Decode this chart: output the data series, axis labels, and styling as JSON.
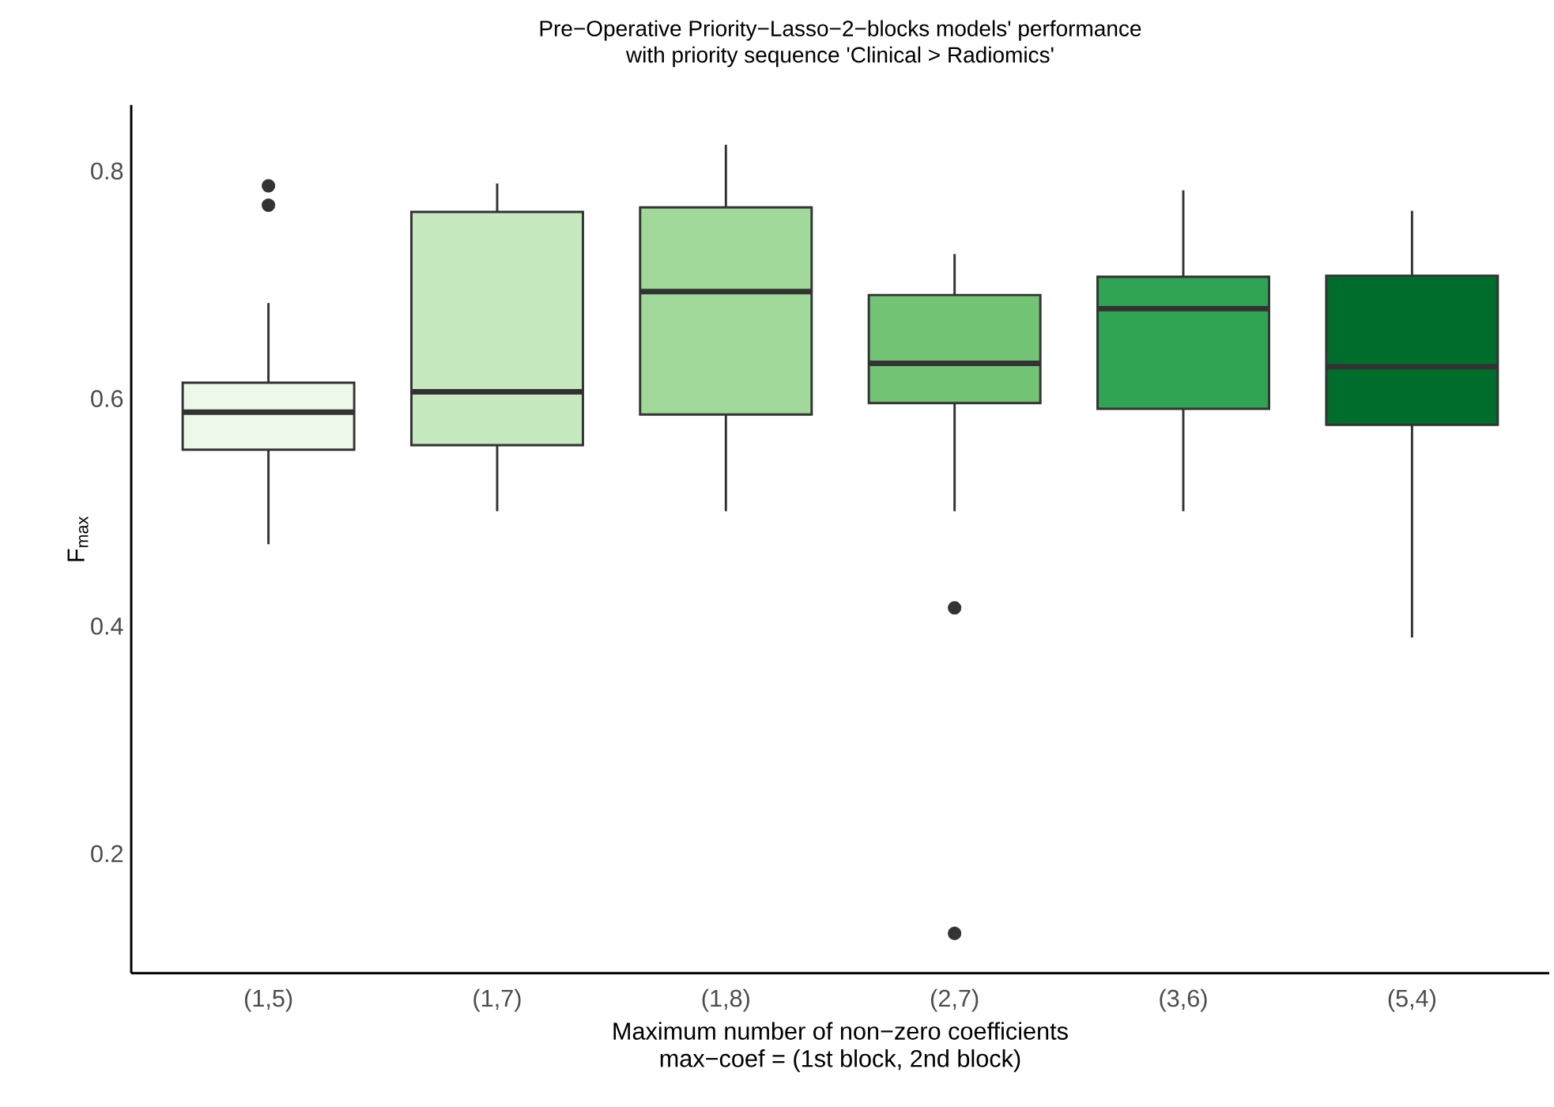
{
  "chart_data": {
    "type": "box",
    "title": "Pre−Operative Priority−Lasso−2−blocks models' performance",
    "subtitle": "with priority sequence 'Clinical > Radiomics'",
    "xlabel": "Maximum number of non−zero coefficients",
    "annotations": [
      "max−coef = (1st block, 2nd block)"
    ],
    "ylabel": "F$_{max}$",
    "categories": [
      "(1,5)",
      "(1,7)",
      "(1,8)",
      "(2,7)",
      "(3,6)",
      "(5,4)"
    ],
    "colors": [
      "#edf8e9",
      "#c7e9c0",
      "#a1d99b",
      "#74c476",
      "#31a354",
      "#006d2c"
    ],
    "boxes": [
      {
        "low": 0.472,
        "q1": 0.555,
        "median": 0.588,
        "q3": 0.614,
        "high": 0.684,
        "outliers": [
          0.787,
          0.77
        ]
      },
      {
        "low": 0.501,
        "q1": 0.559,
        "median": 0.606,
        "q3": 0.764,
        "high": 0.789
      },
      {
        "low": 0.501,
        "q1": 0.586,
        "median": 0.694,
        "q3": 0.768,
        "high": 0.823
      },
      {
        "low": 0.501,
        "q1": 0.596,
        "median": 0.631,
        "q3": 0.691,
        "high": 0.727,
        "outliers": [
          0.416,
          0.13
        ]
      },
      {
        "low": 0.501,
        "q1": 0.591,
        "median": 0.679,
        "q3": 0.707,
        "high": 0.783
      },
      {
        "low": 0.39,
        "q1": 0.577,
        "median": 0.628,
        "q3": 0.708,
        "high": 0.765
      }
    ],
    "ylim": [
      0.095,
      0.858
    ],
    "yticks": [
      0.2,
      0.4,
      0.6,
      0.8
    ],
    "grid": false
  }
}
